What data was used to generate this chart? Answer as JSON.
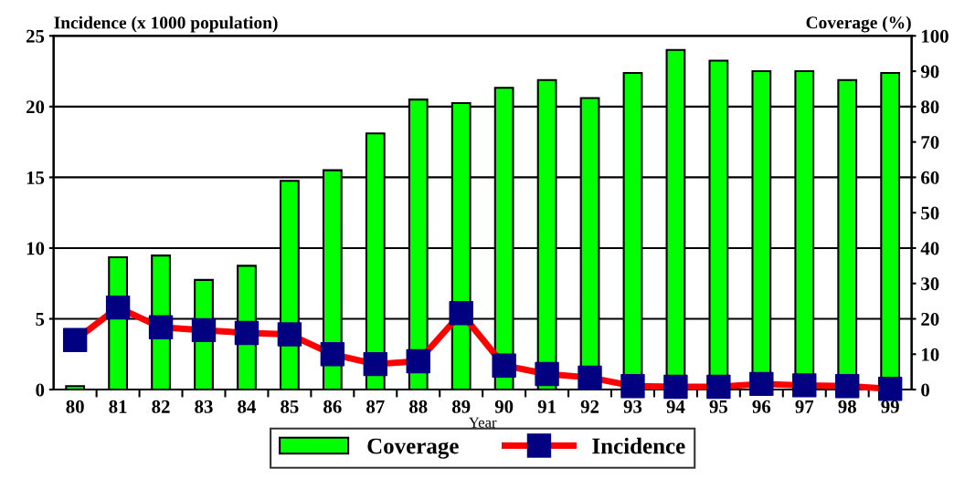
{
  "chart_data": {
    "type": "bar",
    "xlabel": "Year",
    "ylabel": "Incidence (x 1000 population)",
    "y2label": "Coverage (%)",
    "categories": [
      "80",
      "81",
      "82",
      "83",
      "84",
      "85",
      "86",
      "87",
      "88",
      "89",
      "90",
      "91",
      "92",
      "93",
      "94",
      "95",
      "96",
      "97",
      "98",
      "99"
    ],
    "series": [
      {
        "name": "Coverage",
        "axis": "y2",
        "color": "#00ff00",
        "values": [
          1,
          37.4,
          37.9,
          31,
          35,
          59,
          62,
          72.4,
          82,
          81,
          85.3,
          87.5,
          82.4,
          89.5,
          96,
          93,
          90,
          90,
          87.5,
          89.5
        ]
      },
      {
        "name": "Incidence",
        "type": "line",
        "axis": "y",
        "color": "#ff0000",
        "colors": [
          "#000080",
          "#000080",
          "#000080",
          "#000080",
          "#000080",
          "#000080",
          "#000080",
          "#000080",
          "#000080",
          "#000080",
          "#000080",
          "#000080",
          "#000080",
          "#000080",
          "#000080",
          "#000080",
          "#000080",
          "#000080",
          "#000080",
          "#000080"
        ],
        "values": [
          3.5,
          5.8,
          4.4,
          4.2,
          4.0,
          3.9,
          2.5,
          1.8,
          2.0,
          5.4,
          1.7,
          1.1,
          0.85,
          0.25,
          0.2,
          0.2,
          0.4,
          0.3,
          0.25,
          0.05
        ]
      }
    ],
    "ylim": [
      0,
      25
    ],
    "yticks": [
      0,
      5,
      10,
      15,
      20,
      25
    ],
    "y2lim": [
      0,
      100
    ],
    "y2ticks": [
      0,
      10,
      20,
      30,
      40,
      50,
      60,
      70,
      80,
      90,
      100
    ],
    "grid": "y",
    "legend": "bottom",
    "marker": "square",
    "line_style": "solid"
  }
}
